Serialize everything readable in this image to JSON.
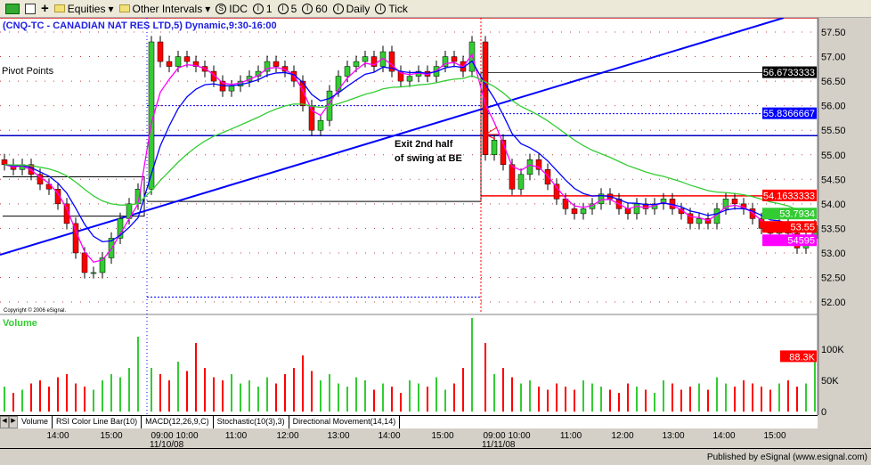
{
  "toolbar": {
    "items": [
      {
        "label": "Equities",
        "icon": "folder-icon"
      },
      {
        "label": "Other Intervals",
        "icon": "folder-icon"
      },
      {
        "label": "IDC",
        "icon": "symbol-icon"
      },
      {
        "label": "1",
        "icon": "interval-icon"
      },
      {
        "label": "5",
        "icon": "interval-icon"
      },
      {
        "label": "60",
        "icon": "interval-icon"
      },
      {
        "label": "Daily",
        "icon": "interval-icon"
      },
      {
        "label": "Tick",
        "icon": "interval-icon"
      }
    ]
  },
  "chart": {
    "title": "(CNQ-TC - CANADIAN NAT RES LTD,5) Dynamic,9:30-16:00",
    "pivot_label": "Pivot Points",
    "annotation_line1": "Exit 2nd half",
    "annotation_line2": "of swing at BE",
    "copyright": "Copyright © 2006 eSignal.",
    "volume_label": "Volume",
    "price_ticks": [
      "57.50",
      "57.00",
      "56.50",
      "56.00",
      "55.50",
      "55.00",
      "54.50",
      "54.00",
      "53.50",
      "53.00",
      "52.50",
      "52.00"
    ],
    "volume_ticks": [
      "100K",
      "50K",
      "0"
    ],
    "price_badges": [
      {
        "text": "56.6733333",
        "bg": "#000000",
        "fg": "#ffffff",
        "price": 56.6733
      },
      {
        "text": "55.8366667",
        "bg": "#0000ff",
        "fg": "#ffffff",
        "price": 55.8367
      },
      {
        "text": "54.1633333",
        "bg": "#ff0000",
        "fg": "#ffffff",
        "price": 54.1633
      },
      {
        "text": "53.7934",
        "bg": "#33cc33",
        "fg": "#ffffff",
        "price": 53.7934
      },
      {
        "text": "53.55",
        "bg": "#ff0000",
        "fg": "#ffffff",
        "price": 53.55
      },
      {
        "text": "54595",
        "bg": "#ff00ff",
        "fg": "#ffffff",
        "price": 53.5
      }
    ],
    "volume_badge": {
      "text": "88.3K",
      "bg": "#ff0000"
    },
    "time_ticks": [
      "14:00",
      "15:00",
      "09:00",
      "10:00",
      "11:00",
      "12:00",
      "13:00",
      "14:00",
      "15:00",
      "09:00",
      "10:00",
      "11:00",
      "12:00",
      "13:00",
      "14:00",
      "15:00"
    ],
    "dates": [
      "11/10/08",
      "11/11/08"
    ],
    "tabs": [
      "Volume",
      "RSI Color Line Bar(10)",
      "MACD(12,26,9,C)",
      "Stochastic(10(3),3)",
      "Directional Movement(14,14)"
    ],
    "publisher": "Published by eSignal (www.esignal.com)"
  },
  "chart_data": {
    "type": "candlestick",
    "symbol": "CNQ-TC",
    "ylim": [
      51.9,
      57.7
    ],
    "closes": [
      54.8,
      54.7,
      54.8,
      54.6,
      54.4,
      54.3,
      54.0,
      53.6,
      53.0,
      52.6,
      52.6,
      52.9,
      53.3,
      53.7,
      54.0,
      54.3,
      57.3,
      56.9,
      56.8,
      57.0,
      56.9,
      56.8,
      56.7,
      56.5,
      56.3,
      56.4,
      56.5,
      56.6,
      56.7,
      56.9,
      56.8,
      56.7,
      56.5,
      56.0,
      55.5,
      55.7,
      56.3,
      56.6,
      56.8,
      56.9,
      57.0,
      56.8,
      57.1,
      56.7,
      56.5,
      56.6,
      56.7,
      56.6,
      56.8,
      57.0,
      56.9,
      56.7,
      57.3,
      55.0,
      55.3,
      54.8,
      54.3,
      54.6,
      54.9,
      54.7,
      54.4,
      54.1,
      53.9,
      53.8,
      53.9,
      54.0,
      54.2,
      54.1,
      53.9,
      53.8,
      54.0,
      53.9,
      54.0,
      54.1,
      53.9,
      53.8,
      53.6,
      53.7,
      53.6,
      53.9,
      54.1,
      54.0,
      53.9,
      53.7,
      53.5,
      53.4,
      53.6,
      53.4,
      53.1,
      53.3,
      53.55
    ],
    "volumes_k": [
      40,
      30,
      35,
      45,
      50,
      40,
      55,
      60,
      45,
      40,
      35,
      50,
      60,
      55,
      70,
      120,
      70,
      60,
      50,
      80,
      65,
      110,
      70,
      55,
      50,
      60,
      45,
      50,
      40,
      55,
      45,
      60,
      70,
      90,
      65,
      50,
      60,
      45,
      40,
      55,
      50,
      35,
      45,
      40,
      30,
      50,
      45,
      40,
      55,
      35,
      45,
      70,
      150,
      110,
      60,
      70,
      55,
      45,
      50,
      40,
      35,
      45,
      40,
      35,
      50,
      45,
      40,
      35,
      30,
      45,
      40,
      35,
      30,
      50,
      45,
      35,
      40,
      45,
      35,
      55,
      45,
      40,
      50,
      45,
      40,
      35,
      45,
      50,
      40,
      45,
      88
    ],
    "levels": {
      "pivot_r": 56.6733,
      "pivot": 55.8367,
      "pivot_s": 54.1633,
      "prior_level": 55.39
    },
    "colors": {
      "up": "#33cc33",
      "down": "#ff0000",
      "ema_fast": "#ff00ff",
      "ema_mid": "#0000ff",
      "sma_slow": "#33cc33",
      "trendline": "#0000ff"
    }
  }
}
